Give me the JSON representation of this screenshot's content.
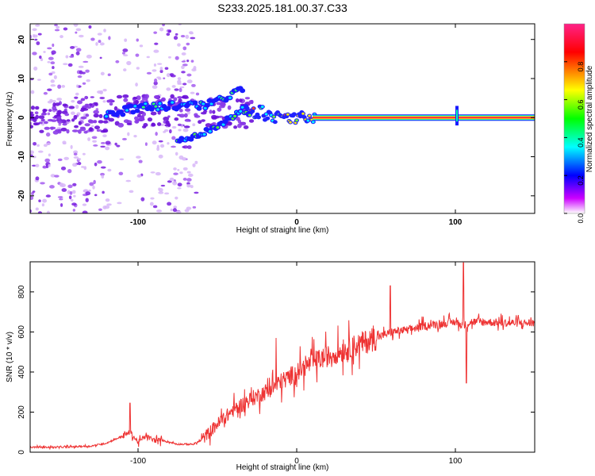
{
  "title": "S233.2025.181.00.37.C33",
  "chart_data": [
    {
      "type": "heatmap",
      "xlabel": "Height of straight line (km)",
      "ylabel": "Frequency (Hz)",
      "xlim": [
        -168,
        150
      ],
      "ylim": [
        -24.5,
        24
      ],
      "xticks": [
        -100,
        0,
        100
      ],
      "yticks": [
        -20,
        -10,
        0,
        10,
        20
      ],
      "colorbar": {
        "label": "Normalized spectral amplitude",
        "range": [
          0,
          1
        ],
        "ticks": [
          "0.0",
          "0.2",
          "0.4",
          "0.6",
          "0.8"
        ],
        "colors": [
          "#ffffff",
          "#cc00ff",
          "#0000ff",
          "#00ffff",
          "#00ff00",
          "#ffff00",
          "#ff0000"
        ]
      },
      "features": {
        "noise_region_x": [
          -168,
          -62
        ],
        "dispersive_arc_upper": [
          [
            -120,
            1
          ],
          [
            -90,
            3
          ],
          [
            -60,
            3
          ],
          [
            -45,
            5
          ],
          [
            -33,
            8
          ]
        ],
        "dispersive_arc_lower": [
          [
            -75,
            -6
          ],
          [
            -60,
            -4
          ],
          [
            -45,
            -1
          ],
          [
            -35,
            2
          ],
          [
            -28,
            1
          ]
        ],
        "carrier_line": {
          "x_start": 10,
          "x_end": 150,
          "frequency": 0,
          "amplitude": 1.0
        },
        "carrier_spike_x": 101
      }
    },
    {
      "type": "line",
      "xlabel": "Height of straight line (km)",
      "ylabel": "SNR (10 * v/v)",
      "xlim": [
        -168,
        150
      ],
      "ylim": [
        0,
        950
      ],
      "xticks": [
        -100,
        0,
        100
      ],
      "yticks": [
        0,
        200,
        400,
        600,
        800
      ],
      "color": "#ee3333",
      "series": [
        {
          "x": [
            -168,
            -150,
            -130,
            -120,
            -110,
            -105,
            -100,
            -95,
            -90,
            -85,
            -75,
            -65,
            -60,
            -50,
            -40,
            -30,
            -20,
            -10,
            0,
            10,
            20,
            30,
            40,
            50,
            60,
            70,
            80,
            90,
            100,
            105,
            110,
            120,
            130,
            140,
            150
          ],
          "y": [
            25,
            25,
            30,
            45,
            80,
            100,
            50,
            80,
            60,
            60,
            40,
            40,
            60,
            140,
            210,
            260,
            300,
            350,
            400,
            450,
            480,
            510,
            540,
            570,
            600,
            610,
            630,
            640,
            650,
            630,
            650,
            650,
            645,
            645,
            645
          ]
        }
      ],
      "peaks": [
        {
          "x": -105,
          "y": 245
        },
        {
          "x": -13,
          "y": 570
        },
        {
          "x": 59,
          "y": 830
        },
        {
          "x": 105,
          "y": 945
        },
        {
          "x": 107,
          "y": 345
        }
      ]
    }
  ]
}
